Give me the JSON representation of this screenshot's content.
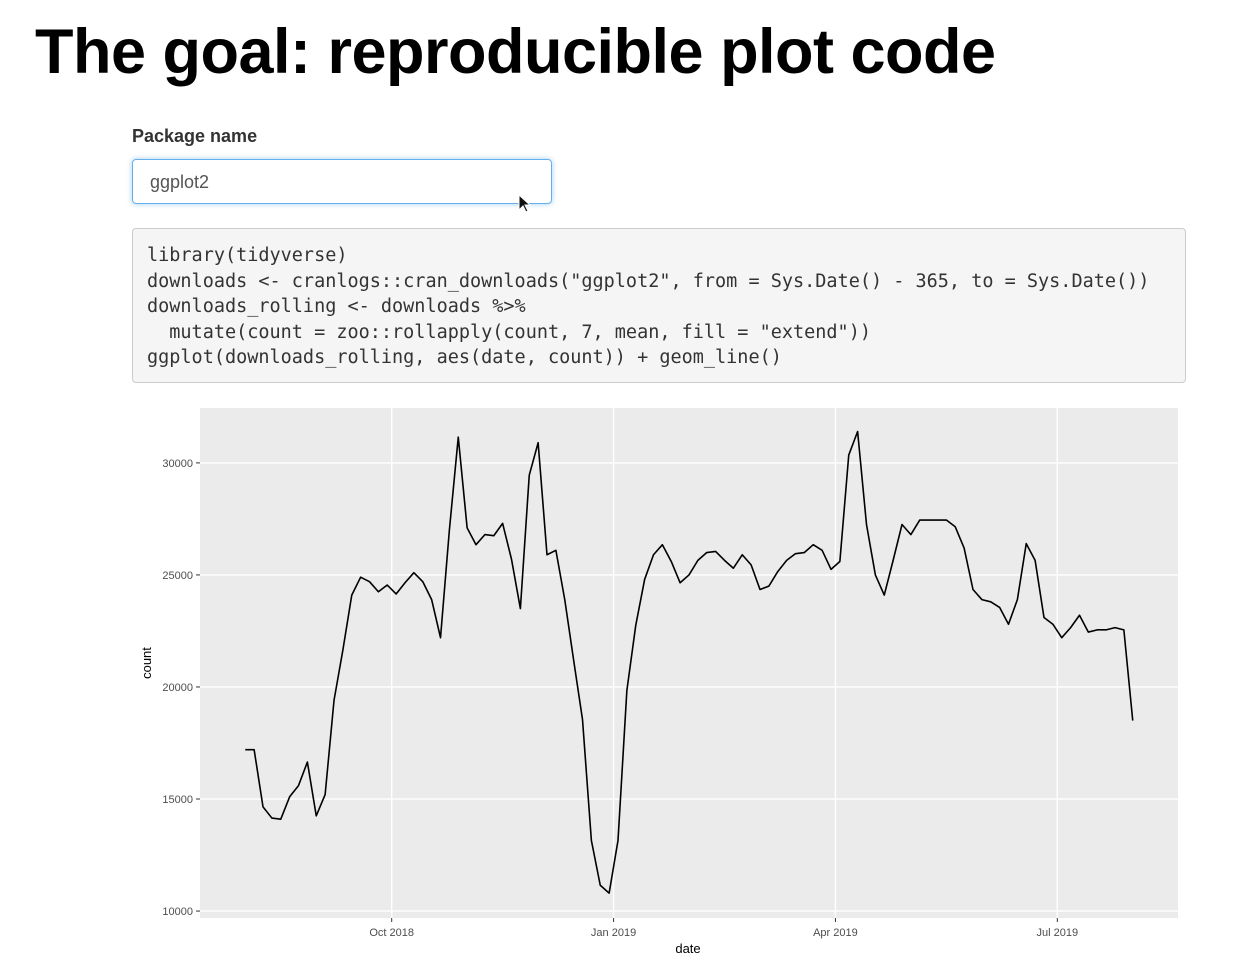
{
  "header": {
    "title": "The goal: reproducible plot code"
  },
  "input": {
    "label": "Package name",
    "value": "ggplot2"
  },
  "code": {
    "lines": [
      "library(tidyverse)",
      "downloads <- cranlogs::cran_downloads(\"ggplot2\", from = Sys.Date() - 365, to = Sys.Date())",
      "downloads_rolling <- downloads %>%",
      "  mutate(count = zoo::rollapply(count, 7, mean, fill = \"extend\"))",
      "ggplot(downloads_rolling, aes(date, count)) + geom_line()"
    ]
  },
  "chart_data": {
    "type": "line",
    "xlabel": "date",
    "ylabel": "count",
    "color": "#000000",
    "grid": true,
    "xlim": [
      2018.534,
      2019.636
    ],
    "ylim": [
      9690,
      32450
    ],
    "xticks": [
      {
        "value": 2018.75,
        "label": "Oct 2018"
      },
      {
        "value": 2019.0,
        "label": "Jan 2019"
      },
      {
        "value": 2019.25,
        "label": "Apr 2019"
      },
      {
        "value": 2019.5,
        "label": "Jul 2019"
      }
    ],
    "yticks": [
      10000,
      15000,
      20000,
      25000,
      30000
    ],
    "x": [
      2018.585,
      2018.595,
      2018.605,
      2018.615,
      2018.625,
      2018.635,
      2018.645,
      2018.655,
      2018.665,
      2018.675,
      2018.685,
      2018.695,
      2018.705,
      2018.715,
      2018.725,
      2018.735,
      2018.745,
      2018.755,
      2018.765,
      2018.775,
      2018.785,
      2018.795,
      2018.805,
      2018.815,
      2018.825,
      2018.835,
      2018.845,
      2018.855,
      2018.865,
      2018.875,
      2018.885,
      2018.895,
      2018.905,
      2018.915,
      2018.925,
      2018.935,
      2018.945,
      2018.955,
      2018.965,
      2018.975,
      2018.985,
      2018.995,
      2019.005,
      2019.015,
      2019.025,
      2019.035,
      2019.045,
      2019.055,
      2019.065,
      2019.075,
      2019.085,
      2019.095,
      2019.105,
      2019.115,
      2019.125,
      2019.135,
      2019.145,
      2019.155,
      2019.165,
      2019.175,
      2019.185,
      2019.195,
      2019.205,
      2019.215,
      2019.225,
      2019.235,
      2019.245,
      2019.255,
      2019.265,
      2019.275,
      2019.285,
      2019.295,
      2019.305,
      2019.315,
      2019.325,
      2019.335,
      2019.345,
      2019.355,
      2019.365,
      2019.375,
      2019.385,
      2019.395,
      2019.405,
      2019.415,
      2019.425,
      2019.435,
      2019.445,
      2019.455,
      2019.465,
      2019.475,
      2019.485,
      2019.495,
      2019.505,
      2019.515,
      2019.525,
      2019.535,
      2019.545,
      2019.555,
      2019.565,
      2019.575,
      2019.585
    ],
    "values": [
      17200,
      17200,
      14650,
      14150,
      14100,
      15100,
      15600,
      16650,
      14250,
      15200,
      19400,
      21650,
      24100,
      24900,
      24700,
      24250,
      24550,
      24150,
      24650,
      25100,
      24700,
      23900,
      22200,
      27000,
      31150,
      27100,
      26350,
      26800,
      26750,
      27300,
      25700,
      23500,
      29450,
      30900,
      25900,
      26100,
      23900,
      21200,
      18550,
      13150,
      11150,
      10800,
      13150,
      19850,
      22750,
      24800,
      25900,
      26350,
      25600,
      24650,
      25000,
      25650,
      26000,
      26050,
      25650,
      25300,
      25900,
      25450,
      24350,
      24500,
      25150,
      25650,
      25950,
      26000,
      26350,
      26100,
      25250,
      25600,
      30350,
      31400,
      27250,
      25000,
      24100,
      25650,
      27250,
      26800,
      27450,
      27450,
      27450,
      27450,
      27150,
      26200,
      24350,
      23900,
      23800,
      23550,
      22800,
      23900,
      26400,
      25650,
      23100,
      22800,
      22200,
      22650,
      23200,
      22450,
      22550,
      22550,
      22650,
      22550,
      18500
    ]
  }
}
